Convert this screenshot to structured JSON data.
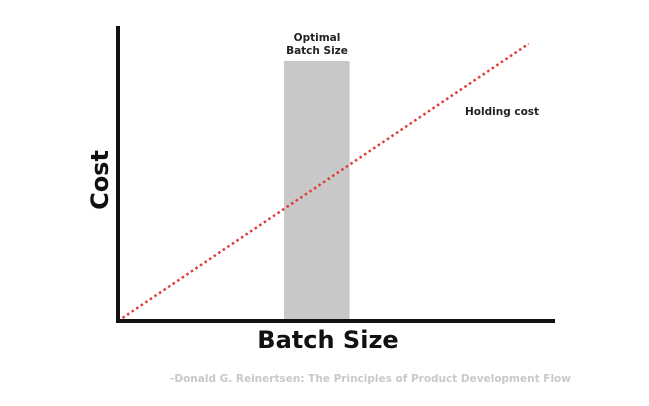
{
  "chart_data": {
    "type": "line",
    "xlabel": "Batch Size",
    "ylabel": "Cost",
    "xlim": [
      0,
      100
    ],
    "ylim": [
      0,
      100
    ],
    "grid": false,
    "series": [
      {
        "name": "Holding cost",
        "x": [
          0,
          94
        ],
        "y": [
          0,
          94
        ],
        "style": "dotted",
        "color": "#e03a3a"
      }
    ],
    "shaded_region": {
      "label": "Optimal Batch Size",
      "x_range": [
        38,
        53
      ],
      "color": "#c8c8c8"
    },
    "annotations": {
      "optimal_line1": "Optimal",
      "optimal_line2": "Batch Size",
      "holding_cost": "Holding cost"
    },
    "credit": "-Donald G. Reinertsen: The Principles of Product Development Flow"
  }
}
